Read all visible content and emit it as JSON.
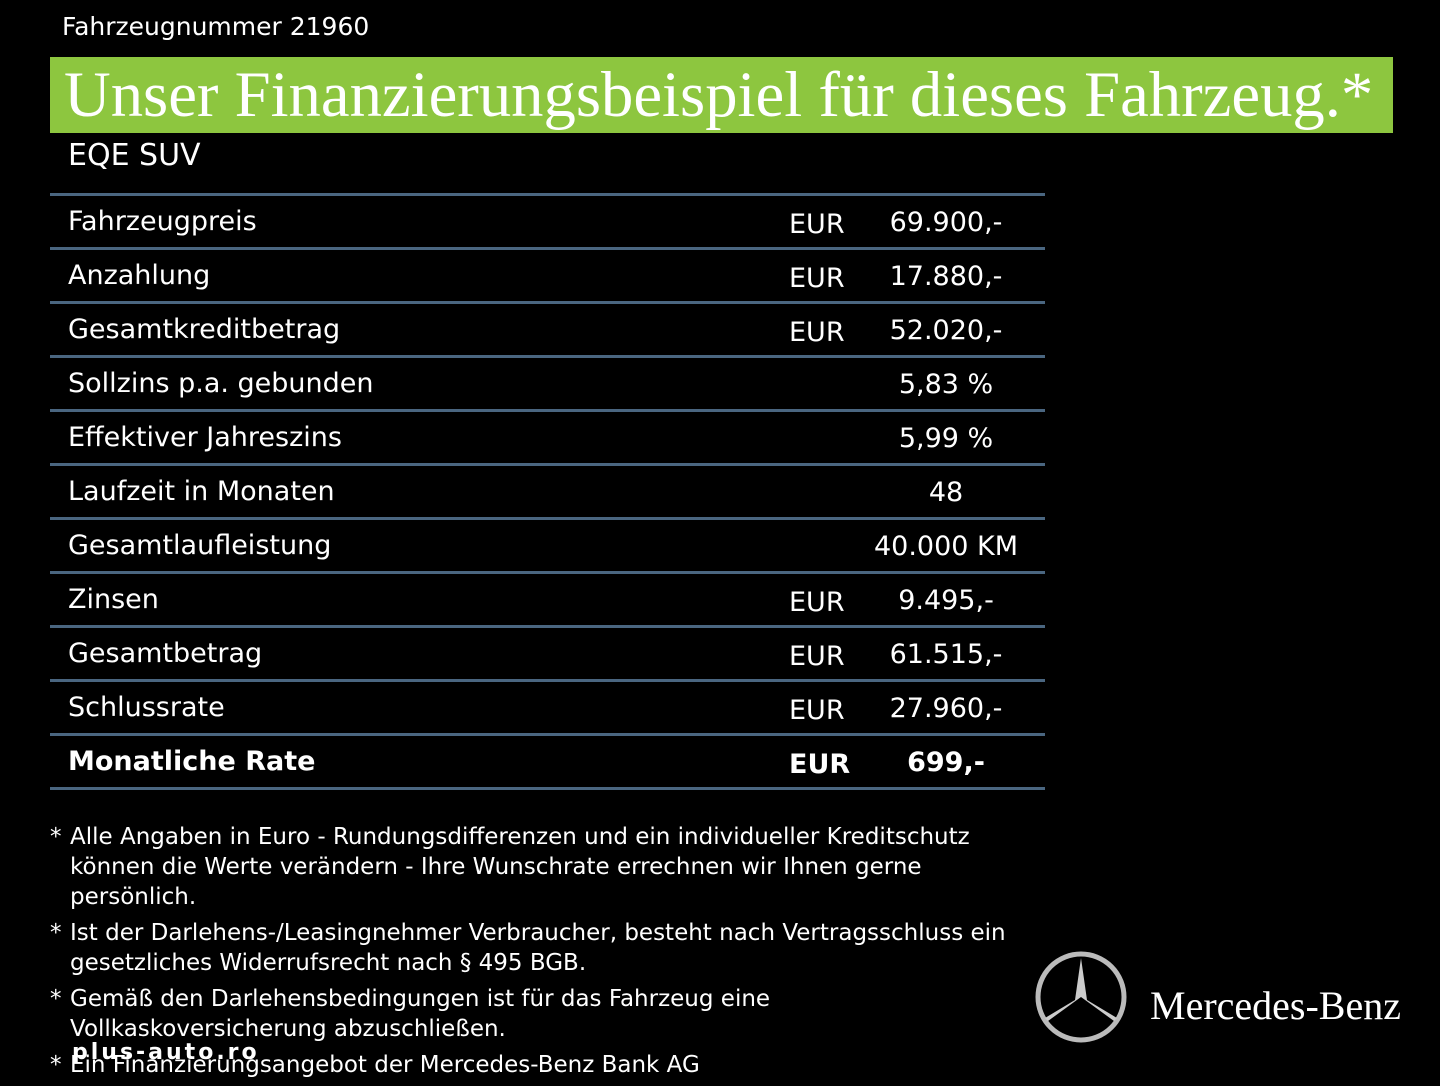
{
  "header": {
    "vehicle_number": "Fahrzeugnummer 21960",
    "title": "Unser Finanzierungsbeispiel für dieses Fahrzeug.*",
    "model": "EQE SUV"
  },
  "table": {
    "rows": [
      [
        "Fahrzeugpreis",
        "EUR",
        "69.900,-"
      ],
      [
        "Anzahlung",
        "EUR",
        "17.880,-"
      ],
      [
        "Gesamtkreditbetrag",
        "EUR",
        "52.020,-"
      ],
      [
        "Sollzins p.a. gebunden",
        "",
        "5,83 %"
      ],
      [
        "Effektiver Jahreszins",
        "",
        "5,99 %"
      ],
      [
        "Laufzeit in Monaten",
        "",
        "48"
      ],
      [
        "Gesamtlaufleistung",
        "",
        "40.000 KM"
      ],
      [
        "Zinsen",
        "EUR",
        "9.495,-"
      ],
      [
        "Gesamtbetrag",
        "EUR",
        "61.515,-"
      ],
      [
        "Schlussrate",
        "EUR",
        "27.960,-"
      ],
      [
        "Monatliche Rate",
        "EUR",
        "699,-"
      ]
    ]
  },
  "footnotes": [
    {
      "marker": "*",
      "text": "Alle Angaben in Euro - Rundungsdifferenzen und ein individueller Kreditschutz können die Werte verändern - Ihre Wunschrate errechnen wir Ihnen gerne persönlich."
    },
    {
      "marker": "*",
      "text": "Ist der Darlehens-/Leasingnehmer Verbraucher, besteht nach Vertragsschluss ein gesetzliches  Widerrufsrecht nach § 495 BGB."
    },
    {
      "marker": "*",
      "text": "Gemäß den Darlehensbedingungen ist für das Fahrzeug eine Vollkaskoversicherung abzuschließen."
    },
    {
      "marker": "*",
      "text": "Ein Finanzierungsangebot der Mercedes-Benz Bank AG"
    }
  ],
  "brand": "Mercedes-Benz",
  "watermark": "plus-auto.ro"
}
